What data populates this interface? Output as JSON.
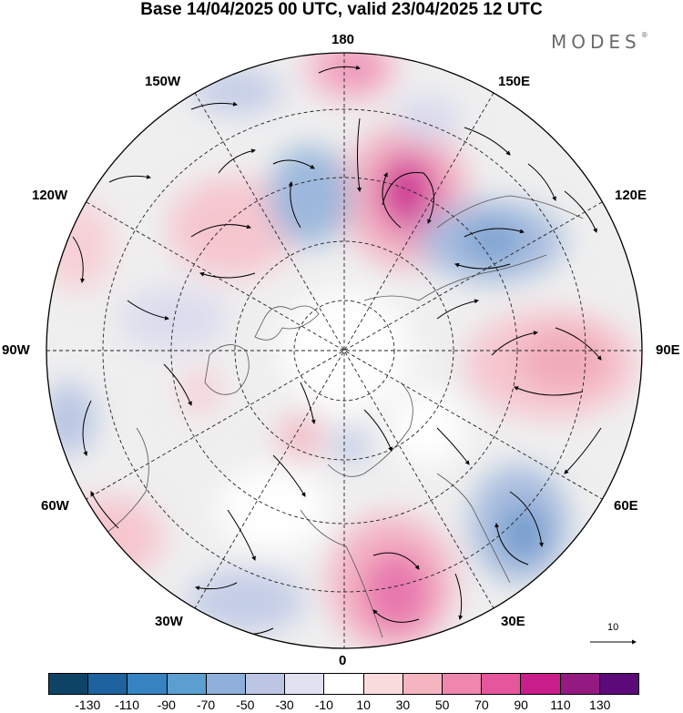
{
  "title": "Base 14/04/2025 00 UTC, valid 23/04/2025 12 UTC",
  "brand": {
    "name": "MODES",
    "mark": "®"
  },
  "longitude_labels": {
    "lon_180": "180",
    "lon_150w": "150W",
    "lon_150e": "150E",
    "lon_120w": "120W",
    "lon_120e": "120E",
    "lon_90w": "90W",
    "lon_90e": "90E",
    "lon_60w": "60W",
    "lon_60e": "60E",
    "lon_30w": "30W",
    "lon_30e": "30E",
    "lon_0": "0"
  },
  "vector_scale": {
    "label": "10"
  },
  "colorbar": {
    "colors": [
      "#0d4466",
      "#1f62a0",
      "#3683c1",
      "#5a9fcf",
      "#8dafd9",
      "#bcc5e3",
      "#e2e1f1",
      "#ffffff",
      "#fadcde",
      "#f4b4c0",
      "#ee86ad",
      "#e5569d",
      "#c81d8a",
      "#941a82",
      "#5c0a79"
    ],
    "tick_labels": [
      "-130",
      "-110",
      "-90",
      "-70",
      "-50",
      "-30",
      "-10",
      "10",
      "30",
      "50",
      "70",
      "90",
      "110",
      "130"
    ]
  }
}
